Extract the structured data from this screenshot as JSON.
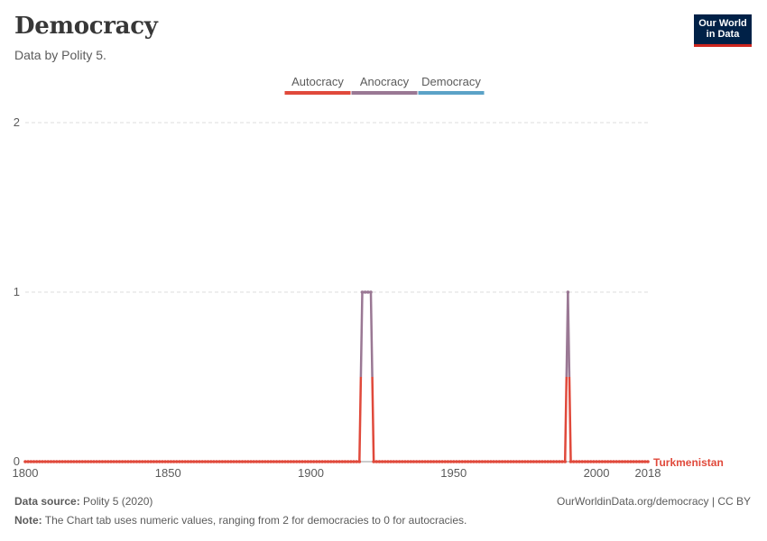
{
  "header": {
    "title": "Democracy",
    "subtitle": "Data by Polity 5."
  },
  "logo": {
    "line1": "Our World",
    "line2": "in Data"
  },
  "footer": {
    "source_label": "Data source:",
    "source_value": "Polity 5 (2020)",
    "url": "OurWorldinData.org/democracy | CC BY",
    "note_label": "Note:",
    "note_value": "The Chart tab uses numeric values, ranging from 2 for democracies to 0 for autocracies."
  },
  "colors": {
    "autocracy": "#e0493b",
    "anocracy": "#9a7894",
    "democracy": "#5ba3c7",
    "grid": "#dddddd",
    "axis_text": "#5b5b5b"
  },
  "chart_data": {
    "type": "line",
    "title": "Democracy",
    "xlabel": "",
    "ylabel": "",
    "xlim": [
      1800,
      2018
    ],
    "ylim": [
      0,
      2
    ],
    "x_ticks": [
      1800,
      1850,
      1900,
      1950,
      2000,
      2018
    ],
    "y_ticks": [
      0,
      1,
      2
    ],
    "legend": [
      {
        "label": "Autocracy",
        "color_key": "autocracy",
        "value": 0
      },
      {
        "label": "Anocracy",
        "color_key": "anocracy",
        "value": 1
      },
      {
        "label": "Democracy",
        "color_key": "democracy",
        "value": 2
      }
    ],
    "legend_position": "top-center",
    "series": [
      {
        "name": "Turkmenistan",
        "start_year": 1800,
        "end_year": 2018,
        "default_value": 0,
        "segments": [
          {
            "from": 1918,
            "to": 1921,
            "value": 1
          },
          {
            "from": 1990,
            "to": 1990,
            "value": 1
          }
        ]
      }
    ]
  }
}
